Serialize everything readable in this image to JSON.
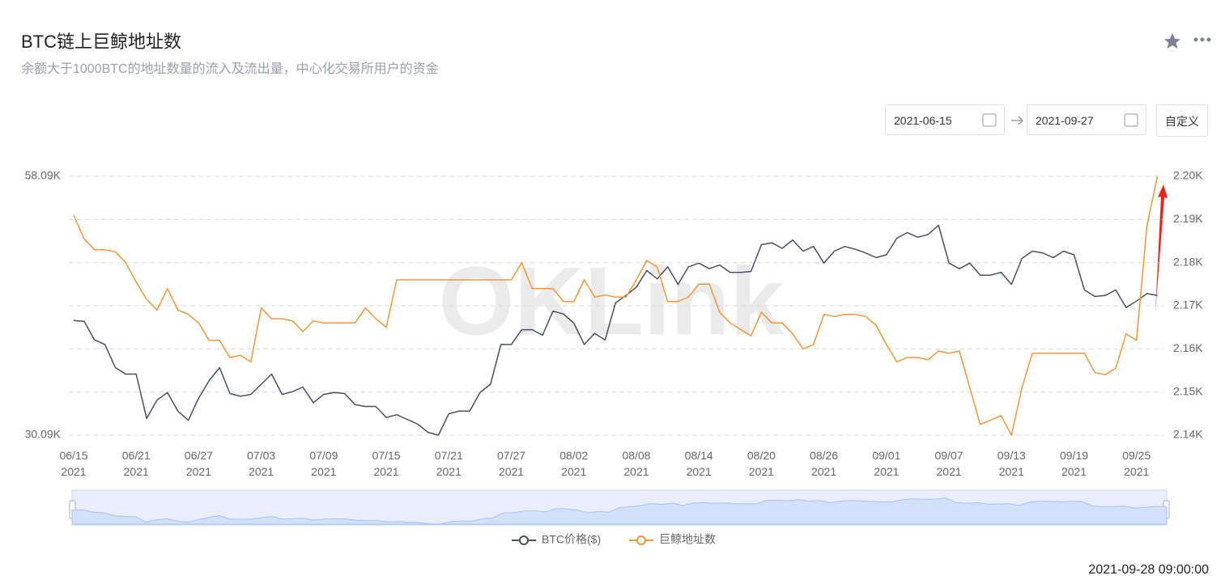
{
  "header": {
    "title": "BTC链上巨鲸地址数",
    "subtitle": "余额大于1000BTC的地址数量的流入及流出量，中心化交易所用户的资金",
    "start_date": "2021-06-15",
    "end_date": "2021-09-27",
    "custom_button": "自定义"
  },
  "watermark": "OKLink",
  "timestamp": "2021-09-28 09:00:00",
  "chart_data": {
    "type": "line",
    "categories": [
      "06/15\n2021",
      null,
      null,
      null,
      null,
      null,
      "06/21\n2021",
      null,
      null,
      null,
      null,
      null,
      "06/27\n2021",
      null,
      null,
      null,
      null,
      null,
      "07/03\n2021",
      null,
      null,
      null,
      null,
      null,
      "07/09\n2021",
      null,
      null,
      null,
      null,
      null,
      "07/15\n2021",
      null,
      null,
      null,
      null,
      null,
      "07/21\n2021",
      null,
      null,
      null,
      null,
      null,
      "07/27\n2021",
      null,
      null,
      null,
      null,
      null,
      "08/02\n2021",
      null,
      null,
      null,
      null,
      null,
      "08/08\n2021",
      null,
      null,
      null,
      null,
      null,
      "08/14\n2021",
      null,
      null,
      null,
      null,
      null,
      "08/20\n2021",
      null,
      null,
      null,
      null,
      null,
      "08/26\n2021",
      null,
      null,
      null,
      null,
      null,
      "09/01\n2021",
      null,
      null,
      null,
      null,
      null,
      "09/07\n2021",
      null,
      null,
      null,
      null,
      null,
      "09/13\n2021",
      null,
      null,
      null,
      null,
      null,
      "09/19\n2021",
      null,
      null,
      null,
      null,
      null,
      "09/25\n2021",
      null,
      null
    ],
    "series": [
      {
        "name": "BTC价格($)",
        "color": "#4a4f5c",
        "axis": "y",
        "values": [
          42500,
          42400,
          40400,
          39900,
          37400,
          36700,
          36700,
          31900,
          33900,
          34700,
          32700,
          31700,
          34100,
          36000,
          37400,
          34600,
          34300,
          34500,
          35600,
          36700,
          34500,
          34800,
          35300,
          33600,
          34500,
          34700,
          34600,
          33400,
          33200,
          33200,
          32000,
          32300,
          31800,
          31300,
          30400,
          30100,
          32400,
          32700,
          32700,
          34700,
          35600,
          39900,
          39900,
          41500,
          41500,
          40900,
          43500,
          43200,
          42200,
          39900,
          41100,
          40400,
          44400,
          45200,
          46100,
          47900,
          47000,
          48300,
          46400,
          48300,
          48700,
          48100,
          48500,
          47700,
          47700,
          47800,
          50700,
          50900,
          50300,
          51200,
          50000,
          50500,
          48700,
          50000,
          50500,
          50200,
          49800,
          49300,
          49600,
          51400,
          52000,
          51500,
          51800,
          52800,
          48700,
          48100,
          48700,
          47400,
          47400,
          47700,
          46400,
          49200,
          50000,
          49800,
          49300,
          50000,
          49600,
          45800,
          45100,
          45200,
          45800,
          43900,
          44600,
          45400,
          45200
        ]
      },
      {
        "name": "巨鲸地址数",
        "color": "#f0963c",
        "axis": "y2",
        "values": [
          2191,
          2185.5,
          2183,
          2183,
          2182.5,
          2180,
          2175.5,
          2171.5,
          2169,
          2174,
          2169,
          2168,
          2166,
          2162,
          2162,
          2158,
          2158.5,
          2157,
          2169.5,
          2167,
          2167,
          2166.5,
          2164,
          2166.5,
          2166,
          2166,
          2166,
          2166,
          2169.5,
          2167,
          2165,
          2176,
          2176,
          2176,
          2176,
          2176,
          2176,
          2176,
          2176,
          2176,
          2176,
          2176,
          2176,
          2180,
          2174,
          2174,
          2174,
          2171,
          2171,
          2176,
          2172,
          2172.5,
          2172,
          2172,
          2176,
          2180.5,
          2179,
          2171,
          2171,
          2172,
          2175,
          2175,
          2168.5,
          2166,
          2164.5,
          2163,
          2168.5,
          2166,
          2166,
          2163.5,
          2160,
          2161,
          2168,
          2167.5,
          2168,
          2168,
          2167.5,
          2165.5,
          2161,
          2157,
          2158,
          2158,
          2157.5,
          2159.5,
          2159,
          2159.5,
          2151,
          2142.5,
          2143.5,
          2144.5,
          2140,
          2151,
          2159,
          2159,
          2159,
          2159,
          2159,
          2159,
          2154.5,
          2154,
          2155.5,
          2163.5,
          2162,
          2188.5,
          2200
        ]
      }
    ],
    "ylim": [
      30090,
      58090
    ],
    "yticks": [
      {
        "value": 30090,
        "label": "30.09K"
      },
      {
        "value": 58090,
        "label": "58.09K"
      }
    ],
    "y2lim": [
      2140,
      2200
    ],
    "y2ticks": [
      {
        "value": 2140,
        "label": "2.14K"
      },
      {
        "value": 2150,
        "label": "2.15K"
      },
      {
        "value": 2160,
        "label": "2.16K"
      },
      {
        "value": 2170,
        "label": "2.17K"
      },
      {
        "value": 2180,
        "label": "2.18K"
      },
      {
        "value": 2190,
        "label": "2.19K"
      },
      {
        "value": 2200,
        "label": "2.20K"
      }
    ],
    "grid": true,
    "legend": "bottom"
  }
}
